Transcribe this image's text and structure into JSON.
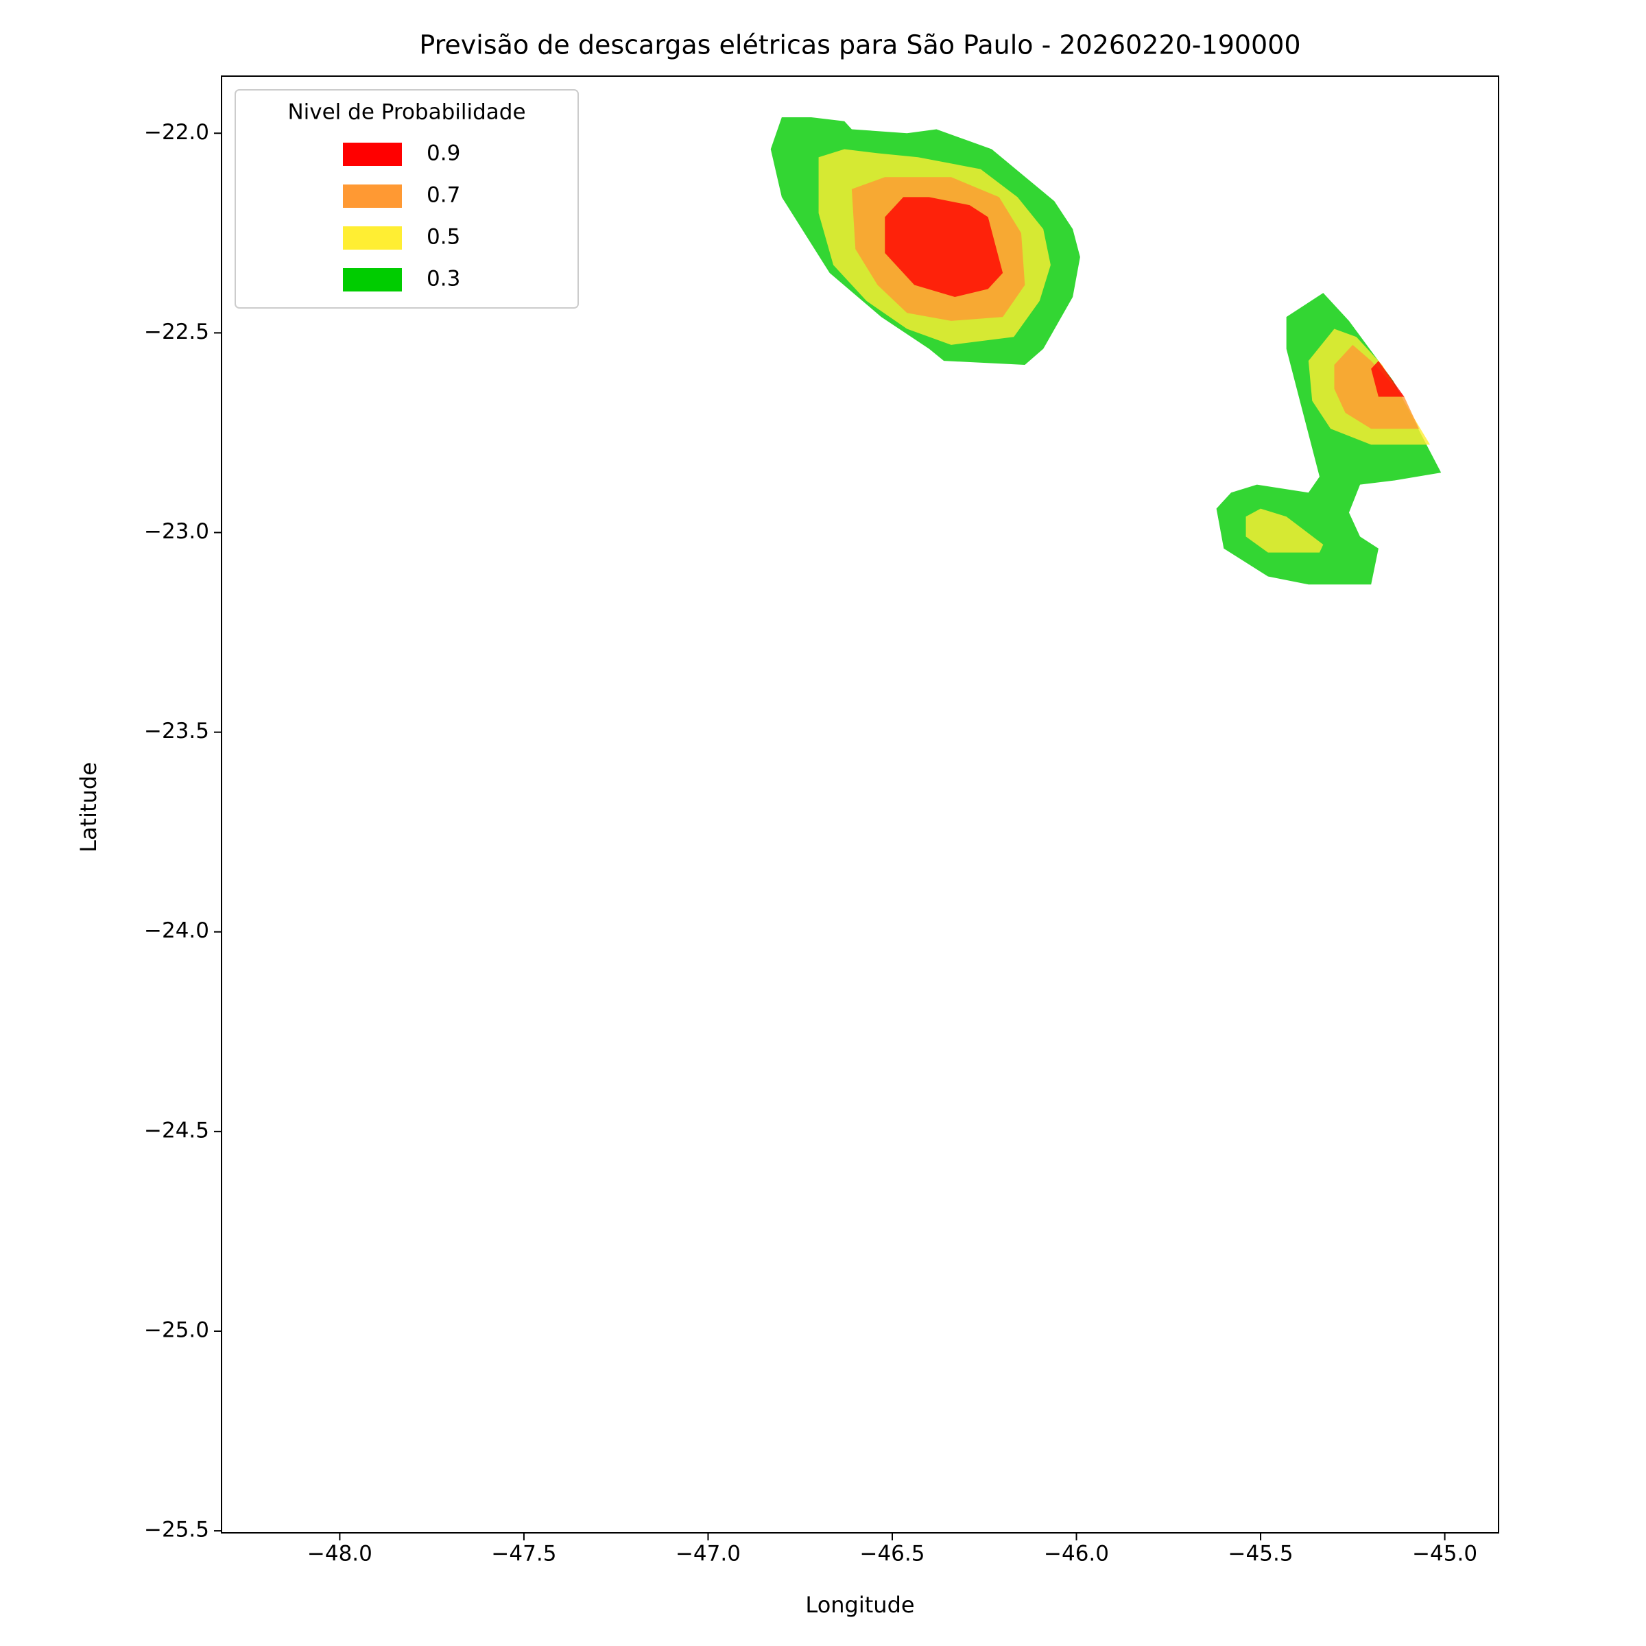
{
  "chart_data": {
    "type": "contour",
    "title": "Previsão de descargas elétricas para São Paulo - 20260220-190000",
    "xlabel": "Longitude",
    "ylabel": "Latitude",
    "xlim": [
      -48.321,
      -44.854
    ],
    "ylim": [
      -25.505,
      -21.857
    ],
    "xticks": [
      {
        "value": -48.0,
        "label": "−48.0"
      },
      {
        "value": -47.5,
        "label": "−47.5"
      },
      {
        "value": -47.0,
        "label": "−47.0"
      },
      {
        "value": -46.5,
        "label": "−46.5"
      },
      {
        "value": -46.0,
        "label": "−46.0"
      },
      {
        "value": -45.5,
        "label": "−45.5"
      },
      {
        "value": -45.0,
        "label": "−45.0"
      }
    ],
    "yticks": [
      {
        "value": -22.0,
        "label": "−22.0"
      },
      {
        "value": -22.5,
        "label": "−22.5"
      },
      {
        "value": -23.0,
        "label": "−23.0"
      },
      {
        "value": -23.5,
        "label": "−23.5"
      },
      {
        "value": -24.0,
        "label": "−24.0"
      },
      {
        "value": -24.5,
        "label": "−24.5"
      },
      {
        "value": -25.0,
        "label": "−25.0"
      },
      {
        "value": -25.5,
        "label": "−25.5"
      }
    ],
    "alpha": 0.8,
    "legend": {
      "title": "Nivel de Probabilidade",
      "position": "upper left",
      "levels": [
        0.9,
        0.7,
        0.5,
        0.3
      ],
      "colors": [
        "#ff0000",
        "#ff9933",
        "#ffee33",
        "#00cc00"
      ]
    },
    "regions": [
      {
        "level": 0.3,
        "lon": [
          -46.8,
          -46.72,
          -46.63,
          -46.61,
          -46.46,
          -46.38,
          -46.29,
          -46.23,
          -46.06,
          -46.01,
          -45.99,
          -46.01,
          -46.09,
          -46.14,
          -46.36,
          -46.4,
          -46.53,
          -46.67,
          -46.8,
          -46.83
        ],
        "lat": [
          -21.96,
          -21.96,
          -21.97,
          -21.99,
          -22.0,
          -21.99,
          -22.02,
          -22.04,
          -22.17,
          -22.24,
          -22.31,
          -22.41,
          -22.54,
          -22.58,
          -22.57,
          -22.54,
          -22.46,
          -22.35,
          -22.16,
          -22.04
        ]
      },
      {
        "level": 0.3,
        "lon": [
          -45.43,
          -45.33,
          -45.26,
          -45.14,
          -45.01,
          -45.14,
          -45.23,
          -45.26,
          -45.23,
          -45.18,
          -45.2,
          -45.37,
          -45.48,
          -45.6,
          -45.62,
          -45.58,
          -45.51,
          -45.37,
          -45.34,
          -45.43
        ],
        "lat": [
          -22.46,
          -22.4,
          -22.47,
          -22.62,
          -22.85,
          -22.87,
          -22.88,
          -22.95,
          -23.01,
          -23.04,
          -23.13,
          -23.13,
          -23.11,
          -23.04,
          -22.94,
          -22.9,
          -22.88,
          -22.9,
          -22.86,
          -22.54
        ]
      },
      {
        "level": 0.5,
        "lon": [
          -46.7,
          -46.63,
          -46.54,
          -46.43,
          -46.26,
          -46.16,
          -46.09,
          -46.07,
          -46.1,
          -46.17,
          -46.34,
          -46.46,
          -46.57,
          -46.66,
          -46.7
        ],
        "lat": [
          -22.06,
          -22.04,
          -22.05,
          -22.06,
          -22.09,
          -22.16,
          -22.24,
          -22.33,
          -22.42,
          -22.51,
          -22.53,
          -22.49,
          -22.42,
          -22.33,
          -22.2
        ]
      },
      {
        "level": 0.5,
        "lon": [
          -45.37,
          -45.3,
          -45.24,
          -45.17,
          -45.04,
          -45.2,
          -45.31,
          -45.36
        ],
        "lat": [
          -22.57,
          -22.49,
          -22.51,
          -22.58,
          -22.78,
          -22.78,
          -22.74,
          -22.67
        ]
      },
      {
        "level": 0.5,
        "lon": [
          -45.54,
          -45.5,
          -45.43,
          -45.33,
          -45.34,
          -45.48,
          -45.54
        ],
        "lat": [
          -22.96,
          -22.94,
          -22.96,
          -23.03,
          -23.05,
          -23.05,
          -23.01
        ]
      },
      {
        "level": 0.7,
        "lon": [
          -46.61,
          -46.52,
          -46.34,
          -46.21,
          -46.15,
          -46.14,
          -46.2,
          -46.34,
          -46.46,
          -46.54,
          -46.6
        ],
        "lat": [
          -22.14,
          -22.11,
          -22.11,
          -22.16,
          -22.25,
          -22.38,
          -22.46,
          -22.47,
          -22.45,
          -22.38,
          -22.29
        ]
      },
      {
        "level": 0.7,
        "lon": [
          -45.3,
          -45.25,
          -45.2,
          -45.11,
          -45.07,
          -45.2,
          -45.27,
          -45.3
        ],
        "lat": [
          -22.58,
          -22.53,
          -22.57,
          -22.66,
          -22.74,
          -22.74,
          -22.7,
          -22.64
        ]
      },
      {
        "level": 0.9,
        "lon": [
          -46.52,
          -46.47,
          -46.4,
          -46.29,
          -46.24,
          -46.2,
          -46.24,
          -46.33,
          -46.44,
          -46.52
        ],
        "lat": [
          -22.21,
          -22.16,
          -22.16,
          -22.18,
          -22.21,
          -22.35,
          -22.39,
          -22.41,
          -22.38,
          -22.3
        ]
      },
      {
        "level": 0.9,
        "lon": [
          -45.2,
          -45.18,
          -45.11,
          -45.18
        ],
        "lat": [
          -22.59,
          -22.57,
          -22.66,
          -22.66
        ]
      }
    ]
  }
}
